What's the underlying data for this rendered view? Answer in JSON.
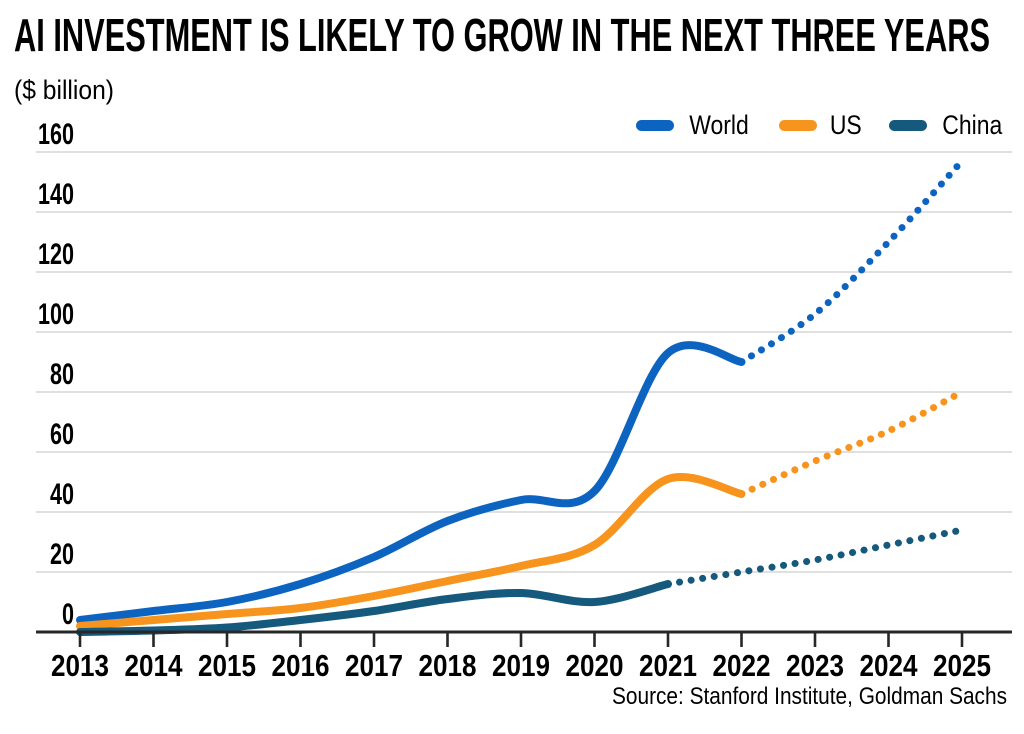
{
  "header": {
    "title": "AI INVESTMENT IS LIKELY TO GROW IN THE NEXT THREE YEARS",
    "subtitle": "($ billion)"
  },
  "source": {
    "text": "Source: Stanford Institute, Goldman Sachs"
  },
  "colors": {
    "background": "#ffffff",
    "grid": "#d6d6d6",
    "axis": "#272727",
    "text": "#000000",
    "world": "#0d64c0",
    "us": "#f7941d",
    "china": "#15597d"
  },
  "chart_data": {
    "type": "line",
    "title": "AI INVESTMENT IS LIKELY TO GROW IN THE NEXT THREE YEARS",
    "unit": "$ billion",
    "xlabel": "",
    "ylabel": "($ billion)",
    "x": [
      2013,
      2014,
      2015,
      2016,
      2017,
      2018,
      2019,
      2020,
      2021,
      2022,
      2023,
      2024,
      2025
    ],
    "ylim": [
      0,
      160
    ],
    "yticks": [
      0,
      20,
      40,
      60,
      80,
      100,
      120,
      140,
      160
    ],
    "grid": "horizontal",
    "legend_position": "top-right",
    "projection_style": "dotted segments are projected values",
    "series": [
      {
        "name": "World",
        "color": "#0d64c0",
        "projection_from_year": 2022,
        "values": [
          4,
          7,
          10,
          16,
          25,
          37,
          44,
          47,
          93,
          90,
          106,
          130,
          157
        ]
      },
      {
        "name": "US",
        "color": "#f7941d",
        "projection_from_year": 2022,
        "values": [
          2,
          4,
          6,
          8,
          12,
          17,
          22,
          29,
          51,
          46,
          57,
          67,
          80
        ]
      },
      {
        "name": "China",
        "color": "#15597d",
        "projection_from_year": 2021,
        "values": [
          0,
          0.5,
          1.5,
          4,
          7,
          11,
          13,
          10,
          16,
          20,
          24,
          29,
          34
        ]
      }
    ]
  }
}
